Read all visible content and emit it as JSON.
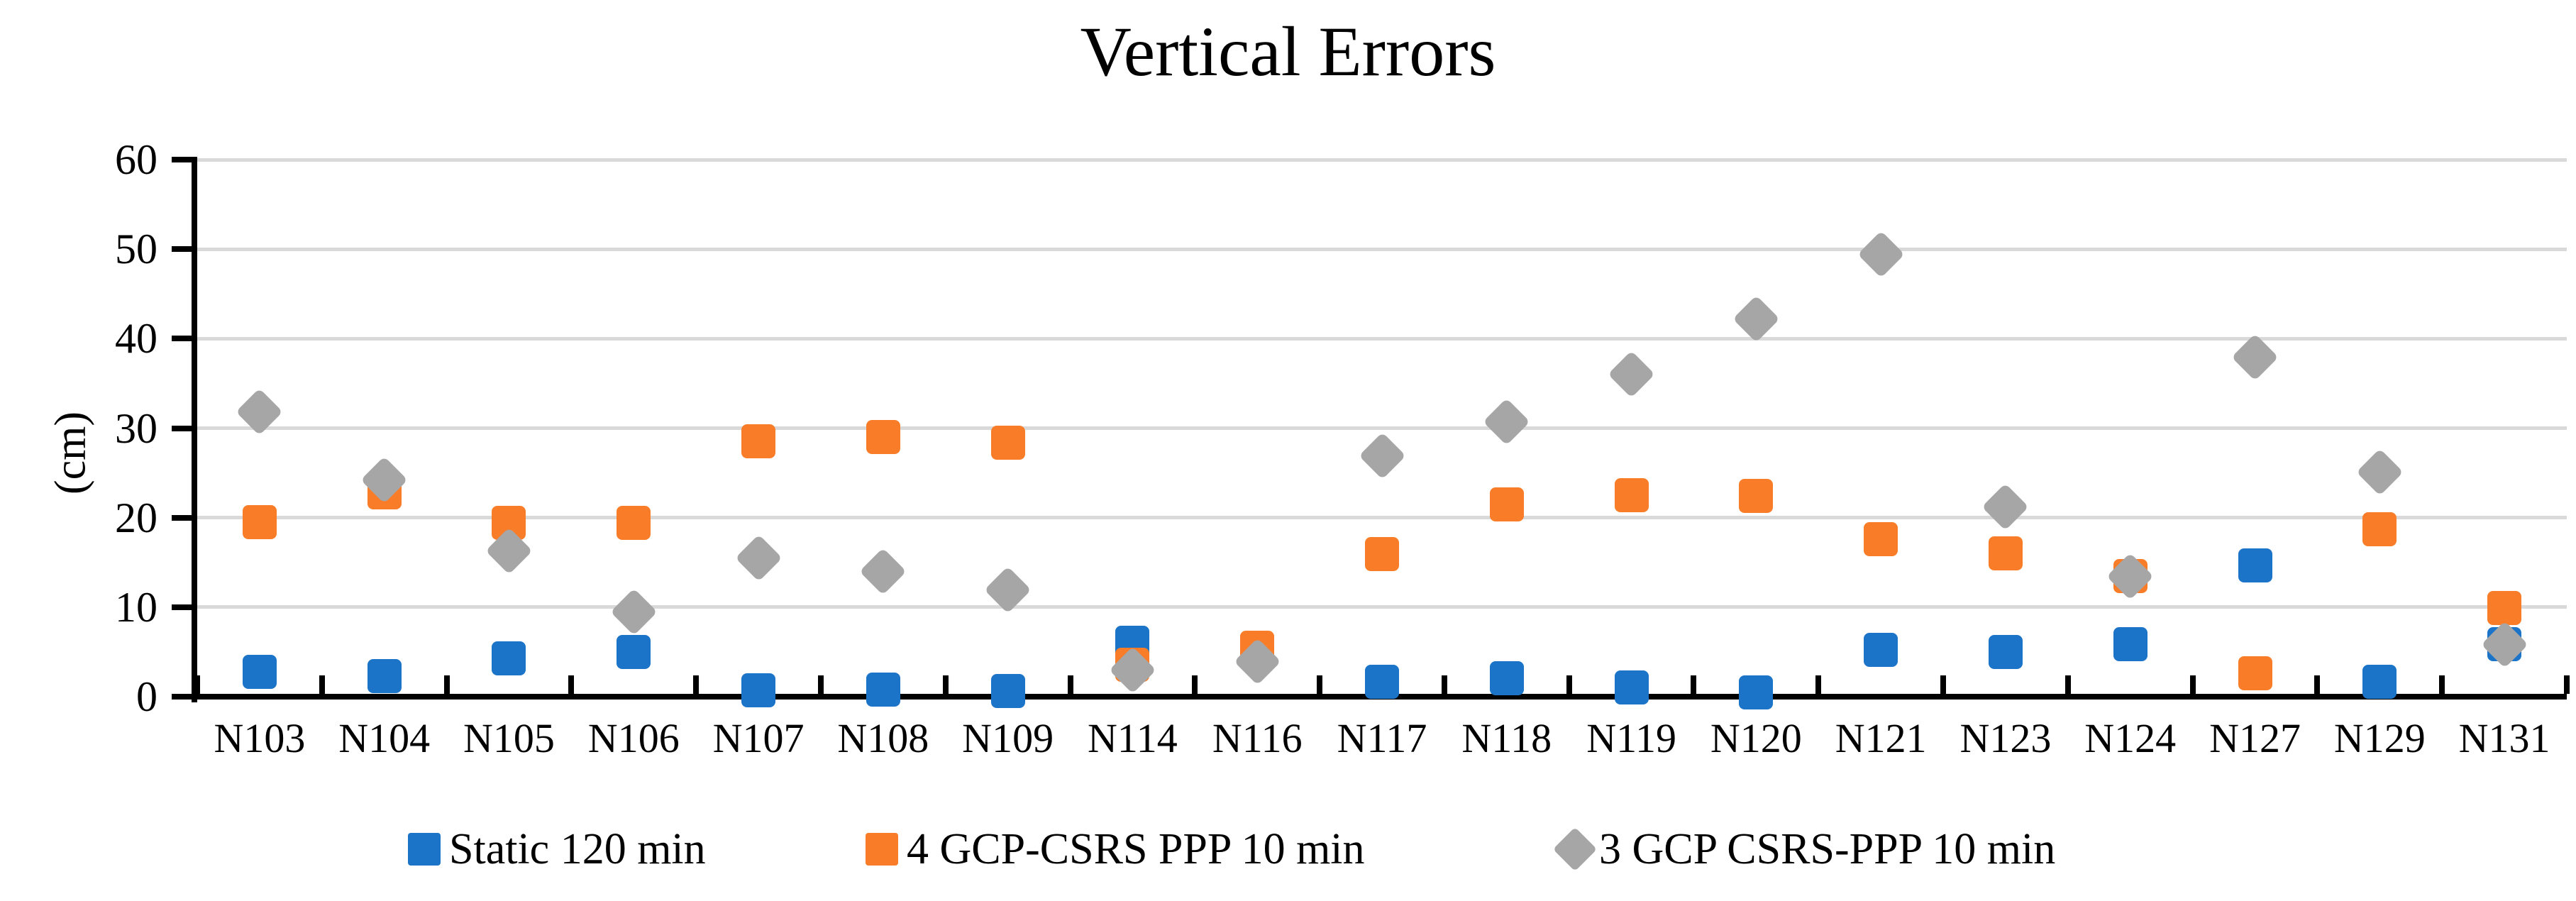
{
  "title": "Vertical Errors",
  "y_axis": {
    "label": "(cm)",
    "tick_labels": [
      "0",
      "10",
      "20",
      "30",
      "40",
      "50",
      "60"
    ],
    "min": 0,
    "max": 60
  },
  "colors": {
    "blue_series": "#1b74c8",
    "orange_series": "#f97d28",
    "gray_series": "#a6a6a6",
    "gridline": "#d9d9d9",
    "axis": "#000000",
    "text": "#000000"
  },
  "legend": {
    "items": [
      "Static 120 min",
      "4 GCP-CSRS PPP 10 min",
      "3 GCP CSRS-PPP 10 min"
    ]
  },
  "chart_data": {
    "type": "scatter",
    "title": "Vertical Errors",
    "xlabel": "",
    "ylabel": "(cm)",
    "ylim": [
      0,
      60
    ],
    "y_ticks": [
      0,
      10,
      20,
      30,
      40,
      50,
      60
    ],
    "grid": "horizontal",
    "legend_position": "bottom",
    "categories": [
      "N103",
      "N104",
      "N105",
      "N106",
      "N107",
      "N108",
      "N109",
      "N114",
      "N116",
      "N117",
      "N118",
      "N119",
      "N120",
      "N121",
      "N123",
      "N124",
      "N127",
      "N129",
      "N131"
    ],
    "series": [
      {
        "name": "Static 120 min",
        "marker": "square",
        "color": "#1b74c8",
        "values": [
          2.8,
          2.3,
          4.3,
          5.0,
          0.7,
          0.8,
          0.6,
          6.0,
          4.9,
          1.7,
          2.1,
          1.0,
          0.5,
          5.2,
          5.0,
          5.9,
          14.7,
          1.7,
          5.9
        ]
      },
      {
        "name": "4 GCP-CSRS PPP 10 min",
        "marker": "square",
        "color": "#f97d28",
        "values": [
          19.5,
          22.8,
          19.4,
          19.4,
          28.5,
          29.0,
          28.4,
          3.6,
          5.5,
          15.9,
          21.5,
          22.5,
          22.4,
          17.6,
          16.0,
          13.5,
          2.6,
          18.7,
          9.9
        ]
      },
      {
        "name": "3 GCP CSRS-PPP 10 min",
        "marker": "diamond",
        "color": "#a6a6a6",
        "values": [
          31.8,
          24.2,
          16.3,
          9.5,
          15.5,
          14.0,
          11.9,
          3.0,
          3.9,
          26.9,
          30.7,
          36.0,
          42.2,
          49.4,
          21.2,
          13.4,
          37.9,
          25.1,
          5.8
        ]
      }
    ]
  }
}
